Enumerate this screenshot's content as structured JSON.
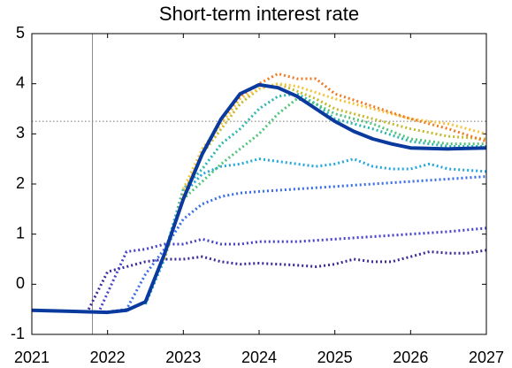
{
  "chart_data": {
    "type": "line",
    "title": "Short-term interest rate",
    "xlim": [
      2021,
      2027
    ],
    "xticks": [
      2021,
      2022,
      2023,
      2024,
      2025,
      2026,
      2027
    ],
    "ylim": [
      -1,
      5
    ],
    "yticks": [
      -1,
      0,
      1,
      2,
      3,
      4,
      5
    ],
    "hline": 3.25,
    "vline": 2021.8,
    "series": [
      {
        "color": "#3b2a98",
        "line_style": "dotted",
        "x": [
          2021.75,
          2022,
          2022.25,
          2022.5,
          2022.75,
          2023,
          2023.25,
          2023.5,
          2023.75,
          2024,
          2024.25,
          2024.5,
          2024.75,
          2025,
          2025.25,
          2025.5,
          2025.75,
          2026,
          2026.25,
          2026.5,
          2026.75,
          2027
        ],
        "values": [
          -0.5,
          0.25,
          0.35,
          0.45,
          0.5,
          0.5,
          0.55,
          0.45,
          0.4,
          0.42,
          0.4,
          0.38,
          0.35,
          0.4,
          0.5,
          0.45,
          0.45,
          0.55,
          0.65,
          0.62,
          0.62,
          0.68
        ]
      },
      {
        "color": "#4742c8",
        "line_style": "dotted",
        "x": [
          2021.9,
          2022.25,
          2022.5,
          2022.75,
          2023,
          2023.25,
          2023.5,
          2023.75,
          2024,
          2024.5,
          2025,
          2025.5,
          2026,
          2026.5,
          2027
        ],
        "values": [
          -0.5,
          0.65,
          0.7,
          0.8,
          0.8,
          0.9,
          0.8,
          0.8,
          0.85,
          0.85,
          0.9,
          0.95,
          1.0,
          1.05,
          1.12
        ]
      },
      {
        "color": "#3a6ee8",
        "line_style": "dotted",
        "x": [
          2022,
          2022.25,
          2022.5,
          2022.75,
          2023,
          2023.25,
          2023.5,
          2023.75,
          2024,
          2024.5,
          2025,
          2025.5,
          2026,
          2026.5,
          2027
        ],
        "values": [
          -0.55,
          -0.5,
          0.2,
          0.7,
          1.3,
          1.6,
          1.75,
          1.82,
          1.85,
          1.9,
          1.95,
          2.0,
          2.05,
          2.1,
          2.15
        ]
      },
      {
        "color": "#22a7dc",
        "line_style": "dotted",
        "x": [
          2022.5,
          2022.75,
          2023,
          2023.25,
          2023.5,
          2023.75,
          2024,
          2024.25,
          2024.5,
          2024.75,
          2025,
          2025.25,
          2025.5,
          2025.75,
          2026,
          2026.25,
          2026.5,
          2027
        ],
        "values": [
          -0.4,
          0.5,
          1.8,
          2.2,
          2.35,
          2.4,
          2.5,
          2.45,
          2.4,
          2.35,
          2.4,
          2.5,
          2.35,
          2.3,
          2.3,
          2.4,
          2.3,
          2.25
        ]
      },
      {
        "color": "#2bb7b0",
        "line_style": "dotted",
        "x": [
          2022.5,
          2022.75,
          2023,
          2023.25,
          2023.5,
          2023.75,
          2024,
          2024.25,
          2024.5,
          2024.75,
          2025,
          2025.5,
          2026,
          2026.5,
          2027
        ],
        "values": [
          -0.4,
          0.6,
          1.9,
          2.3,
          2.8,
          3.1,
          3.5,
          3.75,
          3.8,
          3.6,
          3.3,
          3.1,
          2.85,
          2.75,
          2.75
        ]
      },
      {
        "color": "#52c47a",
        "line_style": "dotted",
        "x": [
          2022.75,
          2023,
          2023.5,
          2023.75,
          2024,
          2024.25,
          2024.5,
          2024.75,
          2025,
          2025.5,
          2026,
          2026.5,
          2027
        ],
        "values": [
          0.6,
          1.7,
          2.4,
          2.7,
          3.0,
          3.4,
          3.7,
          3.6,
          3.4,
          3.2,
          2.9,
          2.8,
          2.8
        ]
      },
      {
        "color": "#c5b82a",
        "line_style": "dotted",
        "x": [
          2022.75,
          2023,
          2023.25,
          2023.5,
          2023.75,
          2024,
          2024.25,
          2024.5,
          2024.75,
          2025,
          2025.5,
          2026,
          2026.5,
          2027
        ],
        "values": [
          0.5,
          1.8,
          2.6,
          3.1,
          3.6,
          3.9,
          4.0,
          3.85,
          3.7,
          3.5,
          3.3,
          3.1,
          2.95,
          2.9
        ]
      },
      {
        "color": "#f5c43a",
        "line_style": "dotted",
        "x": [
          2023,
          2023.25,
          2023.5,
          2023.75,
          2024,
          2024.25,
          2024.5,
          2025,
          2025.5,
          2026,
          2026.5,
          2027
        ],
        "values": [
          1.9,
          2.7,
          3.2,
          3.7,
          3.9,
          4.0,
          3.95,
          3.7,
          3.5,
          3.3,
          3.2,
          3.0
        ]
      },
      {
        "color": "#f07a22",
        "line_style": "dotted",
        "x": [
          2023.5,
          2023.75,
          2024,
          2024.25,
          2024.5,
          2024.75,
          2025,
          2025.5,
          2026,
          2026.5,
          2027
        ],
        "values": [
          3.3,
          3.75,
          4.0,
          4.2,
          4.1,
          4.1,
          3.8,
          3.55,
          3.3,
          3.1,
          2.85
        ]
      },
      {
        "color": "#0a3a9e",
        "line_style": "solid",
        "x": [
          2021,
          2021.5,
          2022,
          2022.25,
          2022.5,
          2022.75,
          2023,
          2023.25,
          2023.5,
          2023.75,
          2024,
          2024.25,
          2024.5,
          2024.75,
          2025,
          2025.25,
          2025.5,
          2025.75,
          2026,
          2026.5,
          2027
        ],
        "values": [
          -0.52,
          -0.54,
          -0.56,
          -0.52,
          -0.35,
          0.6,
          1.7,
          2.6,
          3.3,
          3.8,
          3.98,
          3.92,
          3.75,
          3.5,
          3.25,
          3.05,
          2.9,
          2.8,
          2.72,
          2.7,
          2.72
        ]
      }
    ]
  }
}
